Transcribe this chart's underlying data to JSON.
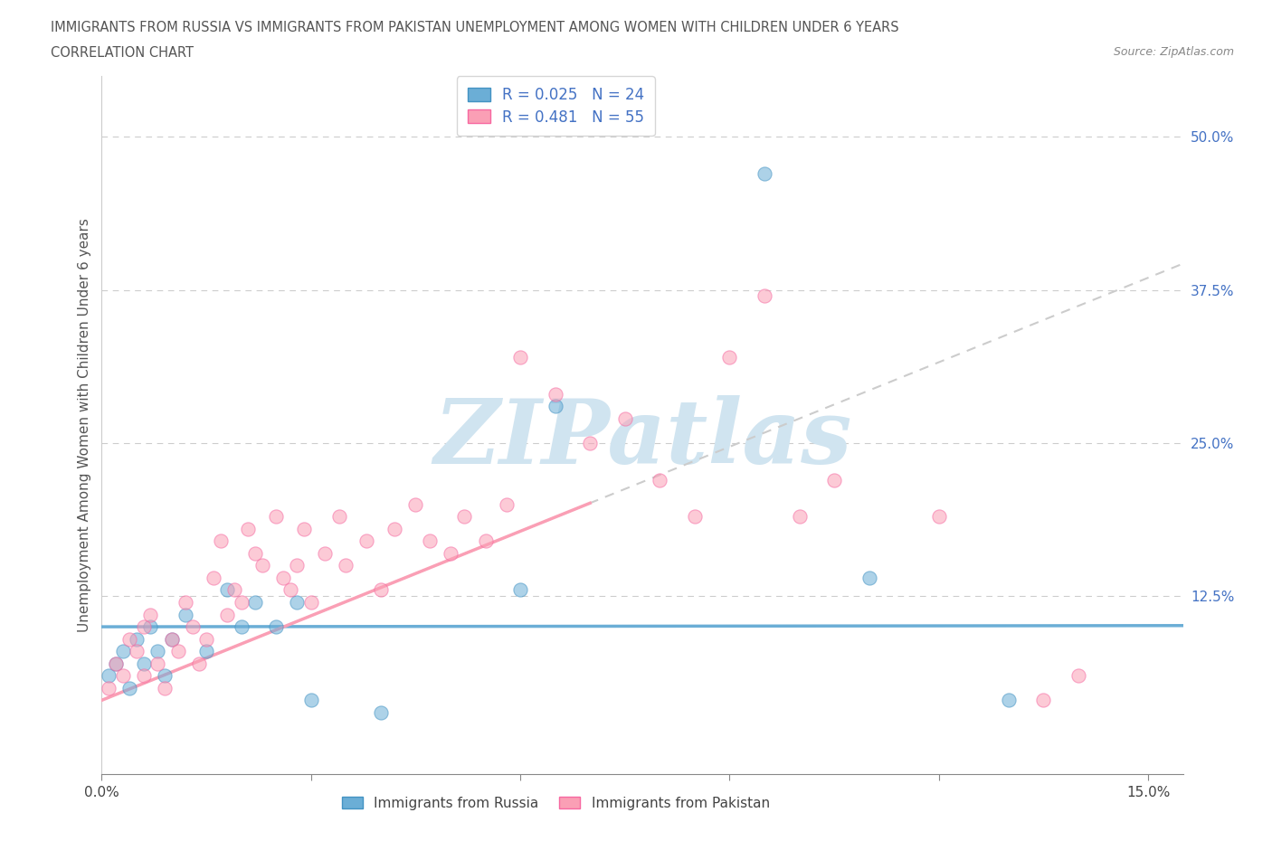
{
  "title_line1": "IMMIGRANTS FROM RUSSIA VS IMMIGRANTS FROM PAKISTAN UNEMPLOYMENT AMONG WOMEN WITH CHILDREN UNDER 6 YEARS",
  "title_line2": "CORRELATION CHART",
  "source": "Source: ZipAtlas.com",
  "ylabel": "Unemployment Among Women with Children Under 6 years",
  "xlim": [
    0.0,
    0.155
  ],
  "ylim": [
    -0.02,
    0.55
  ],
  "xtick_positions": [
    0.0,
    0.03,
    0.06,
    0.09,
    0.12,
    0.15
  ],
  "xticklabels": [
    "0.0%",
    "",
    "",
    "",
    "",
    "15.0%"
  ],
  "right_yticks": [
    0.0,
    0.125,
    0.25,
    0.375,
    0.5
  ],
  "right_yticklabels": [
    "",
    "12.5%",
    "25.0%",
    "37.5%",
    "50.0%"
  ],
  "russia_color": "#6baed6",
  "russia_edge_color": "#4393c3",
  "pakistan_color": "#fa9fb5",
  "pakistan_edge_color": "#f768a1",
  "russia_R": 0.025,
  "russia_N": 24,
  "pakistan_R": 0.481,
  "pakistan_N": 55,
  "legend_label_russia": "Immigrants from Russia",
  "legend_label_pakistan": "Immigrants from Pakistan",
  "trend_dashed_color": "#cccccc",
  "watermark_text": "ZIPatlas",
  "watermark_color": "#d0e4f0",
  "background_color": "#ffffff",
  "russia_x": [
    0.001,
    0.002,
    0.003,
    0.004,
    0.005,
    0.006,
    0.007,
    0.008,
    0.009,
    0.01,
    0.012,
    0.015,
    0.018,
    0.02,
    0.022,
    0.025,
    0.028,
    0.03,
    0.04,
    0.06,
    0.065,
    0.095,
    0.11,
    0.13
  ],
  "russia_y": [
    0.06,
    0.07,
    0.08,
    0.05,
    0.09,
    0.07,
    0.1,
    0.08,
    0.06,
    0.09,
    0.11,
    0.08,
    0.13,
    0.1,
    0.12,
    0.1,
    0.12,
    0.04,
    0.03,
    0.13,
    0.28,
    0.47,
    0.14,
    0.04
  ],
  "pakistan_x": [
    0.001,
    0.002,
    0.003,
    0.004,
    0.005,
    0.006,
    0.006,
    0.007,
    0.008,
    0.009,
    0.01,
    0.011,
    0.012,
    0.013,
    0.014,
    0.015,
    0.016,
    0.017,
    0.018,
    0.019,
    0.02,
    0.021,
    0.022,
    0.023,
    0.025,
    0.026,
    0.027,
    0.028,
    0.029,
    0.03,
    0.032,
    0.034,
    0.035,
    0.038,
    0.04,
    0.042,
    0.045,
    0.047,
    0.05,
    0.052,
    0.055,
    0.058,
    0.06,
    0.065,
    0.07,
    0.075,
    0.08,
    0.085,
    0.09,
    0.095,
    0.1,
    0.105,
    0.12,
    0.135,
    0.14
  ],
  "pakistan_y": [
    0.05,
    0.07,
    0.06,
    0.09,
    0.08,
    0.06,
    0.1,
    0.11,
    0.07,
    0.05,
    0.09,
    0.08,
    0.12,
    0.1,
    0.07,
    0.09,
    0.14,
    0.17,
    0.11,
    0.13,
    0.12,
    0.18,
    0.16,
    0.15,
    0.19,
    0.14,
    0.13,
    0.15,
    0.18,
    0.12,
    0.16,
    0.19,
    0.15,
    0.17,
    0.13,
    0.18,
    0.2,
    0.17,
    0.16,
    0.19,
    0.17,
    0.2,
    0.32,
    0.29,
    0.25,
    0.27,
    0.22,
    0.19,
    0.32,
    0.37,
    0.19,
    0.22,
    0.19,
    0.04,
    0.06
  ]
}
